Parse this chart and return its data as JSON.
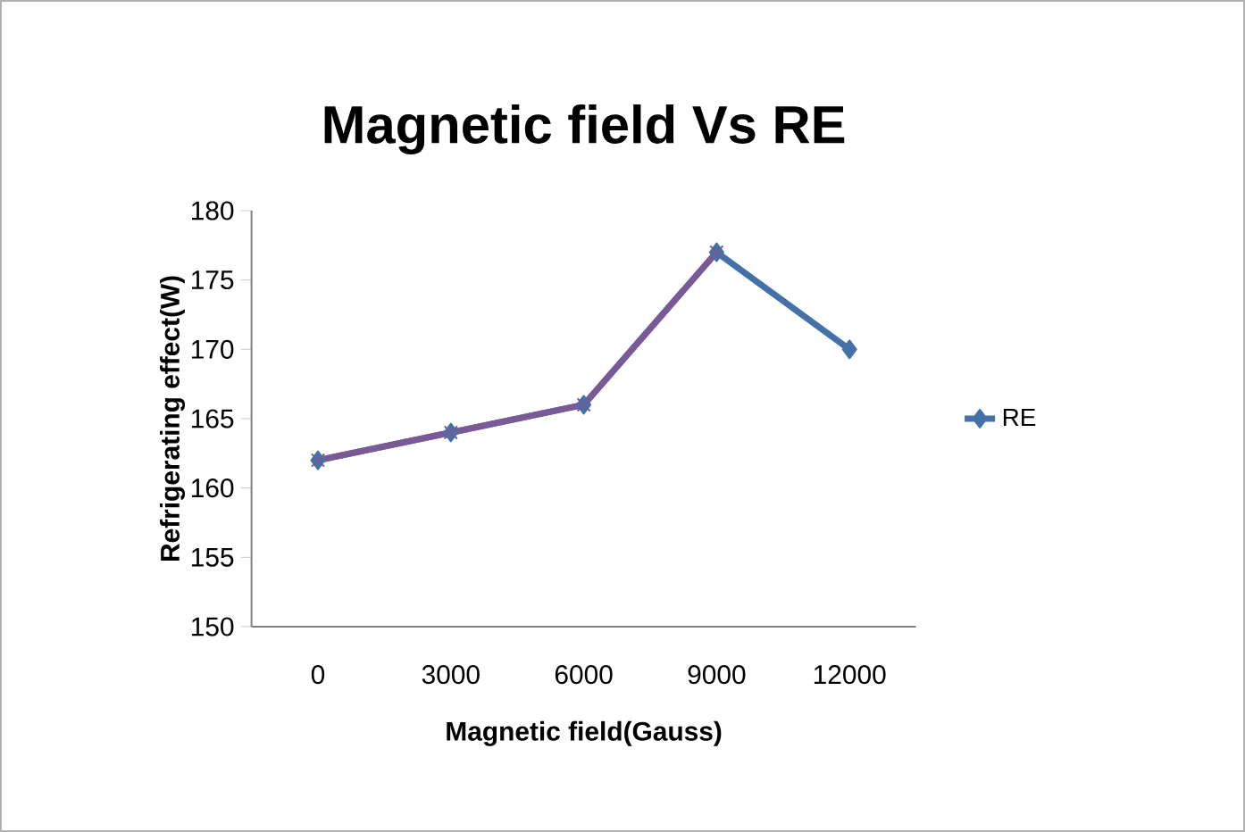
{
  "chart_data": {
    "type": "line",
    "title": "Magnetic field Vs RE",
    "xlabel": "Magnetic field(Gauss)",
    "ylabel": "Refrigerating effect(W)",
    "categories": [
      "0",
      "3000",
      "6000",
      "9000",
      "12000"
    ],
    "series": [
      {
        "name": "RE",
        "color": "#4472a8",
        "marker": "diamond",
        "values": [
          162,
          164,
          166,
          177,
          170
        ]
      },
      {
        "color": "#7a5a96",
        "marker": "cross",
        "values": [
          162,
          164,
          166,
          177,
          null
        ]
      }
    ],
    "ylim": [
      150,
      180
    ],
    "yticks": [
      150,
      155,
      160,
      165,
      170,
      175,
      180
    ],
    "grid": false,
    "legend": "right"
  }
}
